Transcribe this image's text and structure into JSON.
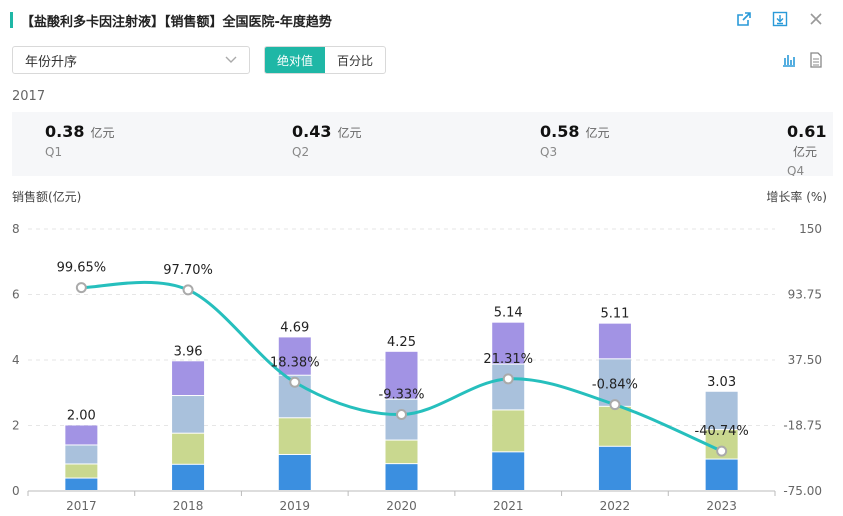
{
  "title": "【盐酸利多卡因注射液】【销售额】全国医院-年度趋势",
  "sort_select": {
    "value": "年份升序"
  },
  "mode_toggle": {
    "absolute": "绝对值",
    "percent": "百分比"
  },
  "selected_year": "2017",
  "quarters": [
    {
      "value": "0.38",
      "unit": "亿元",
      "label": "Q1"
    },
    {
      "value": "0.43",
      "unit": "亿元",
      "label": "Q2"
    },
    {
      "value": "0.58",
      "unit": "亿元",
      "label": "Q3"
    },
    {
      "value": "0.61",
      "unit": "亿元",
      "label": "Q4"
    }
  ],
  "colors": {
    "accent": "#1fb7a6",
    "q1": "#3b8fe0",
    "q2": "#c9d88f",
    "q3": "#a9c1dc",
    "q4": "#a293e4",
    "line": "#26bfbd"
  },
  "chart_data": {
    "type": "bar",
    "stacked": true,
    "ylabel": "销售额(亿元)",
    "y2label": "增长率 (%)",
    "ylim": [
      0,
      8
    ],
    "y_ticks": [
      "0",
      "2",
      "4",
      "6",
      "8"
    ],
    "y2lim": [
      -75,
      150
    ],
    "y2_ticks": [
      "-75.00",
      "-18.75",
      "37.50",
      "93.75",
      "150"
    ],
    "categories": [
      "2017",
      "2018",
      "2019",
      "2020",
      "2021",
      "2022",
      "2023"
    ],
    "series": [
      {
        "name": "Q1",
        "values": [
          0.38,
          0.8,
          1.1,
          0.82,
          1.18,
          1.35,
          0.96
        ]
      },
      {
        "name": "Q2",
        "values": [
          0.43,
          0.95,
          1.12,
          0.72,
          1.28,
          1.22,
          0.9
        ]
      },
      {
        "name": "Q3",
        "values": [
          0.58,
          1.15,
          1.3,
          1.25,
          1.4,
          1.45,
          1.17
        ]
      },
      {
        "name": "Q4",
        "values": [
          0.61,
          1.06,
          1.17,
          1.46,
          1.28,
          1.09,
          0.0
        ]
      }
    ],
    "totals": [
      2.0,
      3.96,
      4.69,
      4.25,
      5.14,
      5.11,
      3.03
    ],
    "total_labels": [
      "2.00",
      "3.96",
      "4.69",
      "4.25",
      "5.14",
      "5.11",
      "3.03"
    ],
    "growth": [
      99.65,
      97.7,
      18.38,
      -9.33,
      21.31,
      -0.84,
      -40.74
    ],
    "growth_labels": [
      "99.65%",
      "97.70%",
      "18.38%",
      "-9.33%",
      "21.31%",
      "-0.84%",
      "-40.74%"
    ]
  }
}
